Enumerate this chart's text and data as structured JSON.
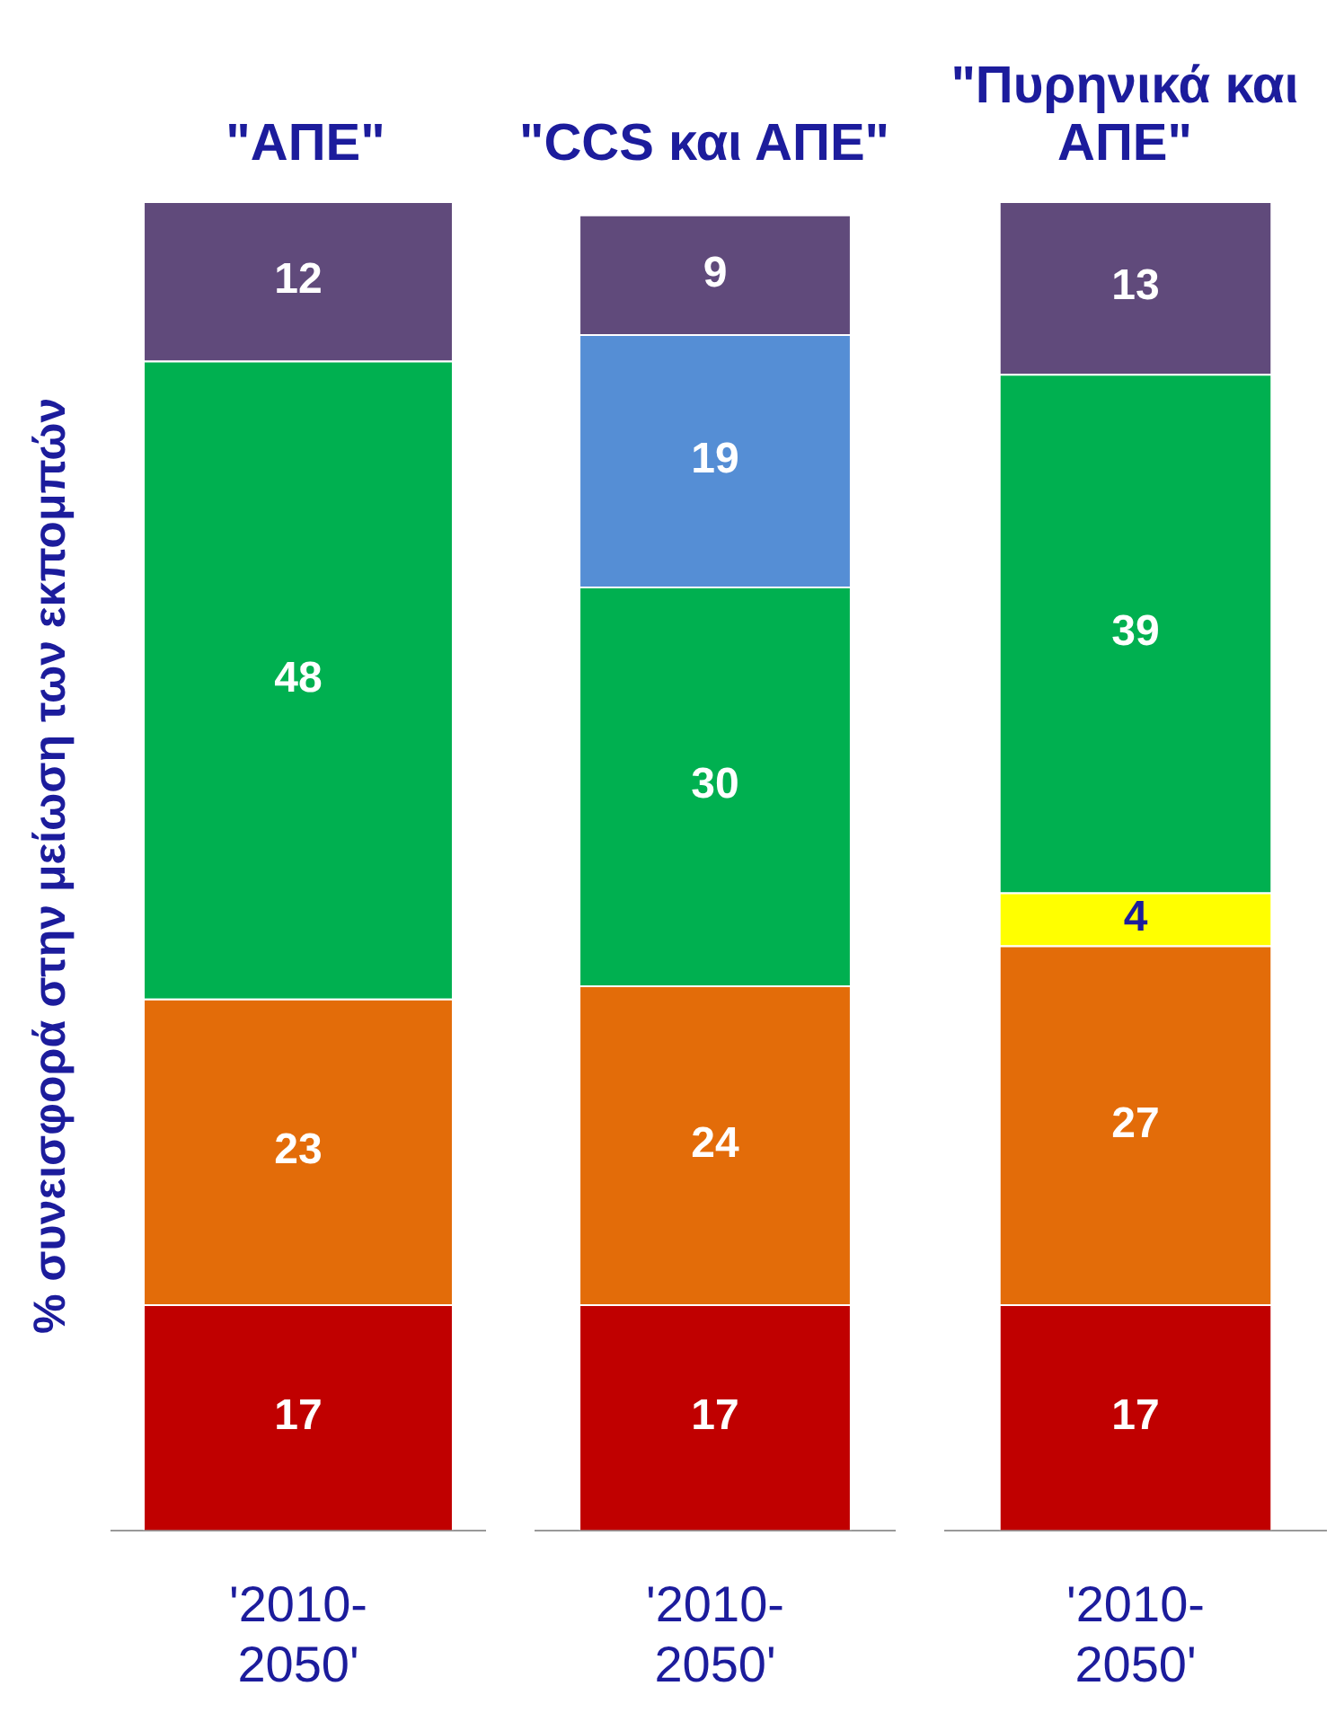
{
  "chart_data": [
    {
      "type": "bar",
      "title": "\"ΑΠΕ\"",
      "ylabel": "% συνεισφορά στην μείωση των εκπομπών",
      "stacked": true,
      "data_labels": true,
      "grid": false,
      "legend": false,
      "categories": [
        "'2010-2050'"
      ],
      "series": [
        {
          "color": "#c00000",
          "values": [
            17
          ]
        },
        {
          "color": "#e36c09",
          "values": [
            23
          ]
        },
        {
          "color": "#00b050",
          "values": [
            48
          ]
        },
        {
          "color": "#604a7b",
          "values": [
            12
          ]
        }
      ]
    },
    {
      "type": "bar",
      "title": "\"CCS και ΑΠΕ\"",
      "stacked": true,
      "data_labels": true,
      "grid": false,
      "legend": false,
      "categories": [
        "'2010-2050'"
      ],
      "series": [
        {
          "color": "#c00000",
          "values": [
            17
          ]
        },
        {
          "color": "#e36c09",
          "values": [
            24
          ]
        },
        {
          "color": "#00b050",
          "values": [
            30
          ]
        },
        {
          "color": "#558ed5",
          "values": [
            19
          ]
        },
        {
          "color": "#604a7b",
          "values": [
            9
          ]
        }
      ]
    },
    {
      "type": "bar",
      "title": "\"Πυρηνικά και ΑΠΕ\"",
      "stacked": true,
      "data_labels": true,
      "grid": false,
      "legend": false,
      "categories": [
        "'2010-2050'"
      ],
      "series": [
        {
          "color": "#c00000",
          "values": [
            17
          ]
        },
        {
          "color": "#e36c09",
          "values": [
            27
          ]
        },
        {
          "color": "#ffff00",
          "values": [
            4
          ]
        },
        {
          "color": "#00b050",
          "values": [
            39
          ]
        },
        {
          "color": "#604a7b",
          "values": [
            13
          ]
        }
      ]
    }
  ]
}
